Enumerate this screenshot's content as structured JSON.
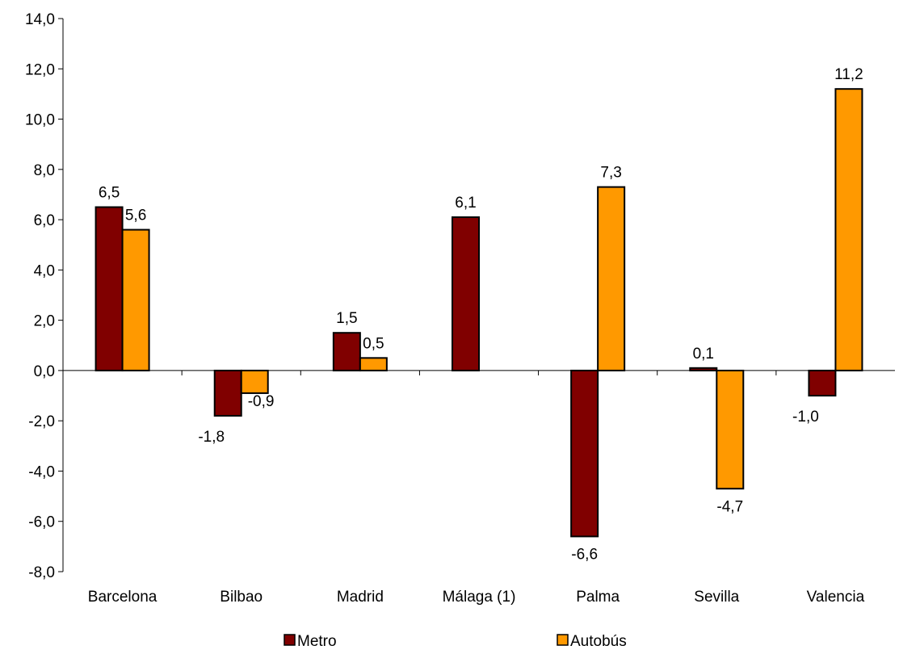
{
  "chart_data": {
    "type": "bar",
    "categories": [
      "Barcelona",
      "Bilbao",
      "Madrid",
      "Málaga (1)",
      "Palma",
      "Sevilla",
      "Valencia"
    ],
    "series": [
      {
        "name": "Metro",
        "color": "#800000",
        "values": [
          6.5,
          -1.8,
          1.5,
          6.1,
          -6.6,
          0.1,
          -1.0
        ],
        "labels": [
          "6,5",
          "-1,8",
          "1,5",
          "6,1",
          "-6,6",
          "0,1",
          "-1,0"
        ]
      },
      {
        "name": "Autobús",
        "color": "#FF9900",
        "values": [
          5.6,
          -0.9,
          0.5,
          null,
          7.3,
          -4.7,
          11.2
        ],
        "labels": [
          "5,6",
          "-0,9",
          "0,5",
          null,
          "7,3",
          "-4,7",
          "11,2"
        ]
      }
    ],
    "ylim": [
      -8,
      14
    ],
    "yticks": [
      "-8,0",
      "-6,0",
      "-4,0",
      "-2,0",
      "0,0",
      "2,0",
      "4,0",
      "6,0",
      "8,0",
      "10,0",
      "12,0",
      "14,0"
    ],
    "legend_position": "bottom",
    "grid": false
  }
}
